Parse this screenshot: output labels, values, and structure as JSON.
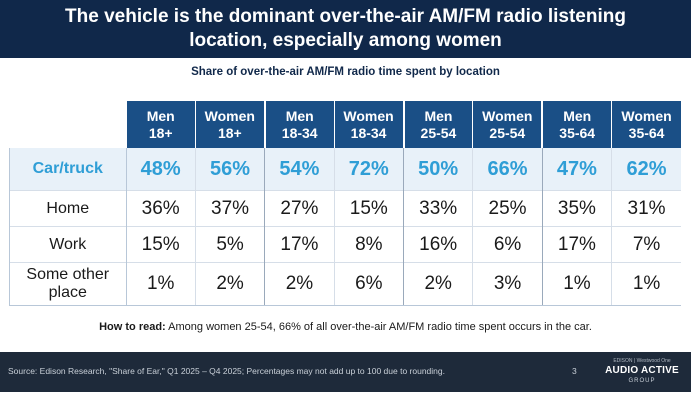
{
  "title": "The vehicle is the dominant over-the-air AM/FM radio listening location, especially among women",
  "chart_data": {
    "type": "table",
    "title": "Share of over-the-air AM/FM radio time spent by location",
    "columns": [
      {
        "line1": "Men",
        "line2": "18+"
      },
      {
        "line1": "Women",
        "line2": "18+"
      },
      {
        "line1": "Men",
        "line2": "18-34"
      },
      {
        "line1": "Women",
        "line2": "18-34"
      },
      {
        "line1": "Men",
        "line2": "25-54"
      },
      {
        "line1": "Women",
        "line2": "25-54"
      },
      {
        "line1": "Men",
        "line2": "35-64"
      },
      {
        "line1": "Women",
        "line2": "35-64"
      }
    ],
    "rows": [
      {
        "label": "Car/truck",
        "values": [
          "48%",
          "56%",
          "54%",
          "72%",
          "50%",
          "66%",
          "47%",
          "62%"
        ]
      },
      {
        "label": "Home",
        "values": [
          "36%",
          "37%",
          "27%",
          "15%",
          "33%",
          "25%",
          "35%",
          "31%"
        ]
      },
      {
        "label": "Work",
        "values": [
          "15%",
          "5%",
          "17%",
          "8%",
          "16%",
          "6%",
          "17%",
          "7%"
        ]
      },
      {
        "label": "Some other place",
        "label_line1": "Some other",
        "label_line2": "place",
        "values": [
          "1%",
          "2%",
          "2%",
          "6%",
          "2%",
          "3%",
          "1%",
          "1%"
        ]
      }
    ],
    "highlight_row": "Car/truck",
    "colors": {
      "header_bg": "#1a4f86",
      "highlight_text": "#2f9ed6",
      "highlight_bg": "#e8f1f9"
    }
  },
  "how_to_read": {
    "label": "How to read:",
    "text": " Among women 25-54, 66% of all over-the-air AM/FM radio time spent occurs in the car."
  },
  "footer": {
    "source": "Source: Edison Research, \"Share of Ear,\" Q1 2025 – Q4 2025; Percentages may not add up to 100 due to rounding.",
    "page_number": "3",
    "logo_small": "EDISON | Westwood One",
    "logo_main": "AUDIO ACTIVE",
    "logo_sub": "GROUP"
  }
}
